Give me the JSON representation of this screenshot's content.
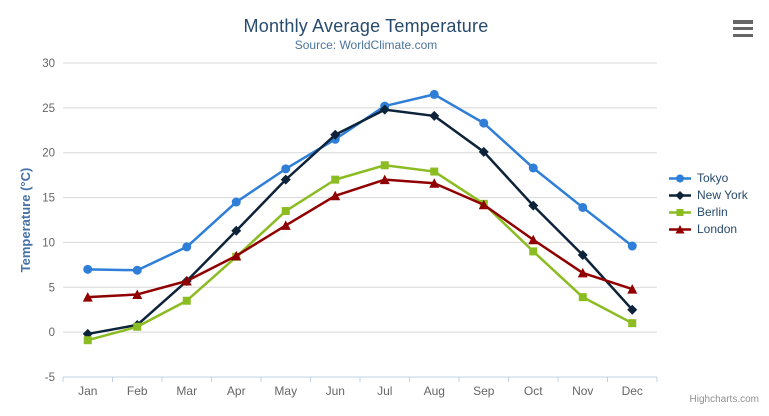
{
  "credits": {
    "label": "Highcharts.com"
  },
  "context_menu": {
    "icon": "hamburger-icon"
  },
  "chart_data": {
    "type": "line",
    "title": "Monthly Average Temperature",
    "subtitle": "Source: WorldClimate.com",
    "categories": [
      "Jan",
      "Feb",
      "Mar",
      "Apr",
      "May",
      "Jun",
      "Jul",
      "Aug",
      "Sep",
      "Oct",
      "Nov",
      "Dec"
    ],
    "series": [
      {
        "name": "Tokyo",
        "color": "#2f7ed8",
        "marker": "circle",
        "values": [
          7.0,
          6.9,
          9.5,
          14.5,
          18.2,
          21.5,
          25.2,
          26.5,
          23.3,
          18.3,
          13.9,
          9.6
        ]
      },
      {
        "name": "New York",
        "color": "#0d233a",
        "marker": "diamond",
        "values": [
          -0.2,
          0.8,
          5.7,
          11.3,
          17.0,
          22.0,
          24.8,
          24.1,
          20.1,
          14.1,
          8.6,
          2.5
        ]
      },
      {
        "name": "Berlin",
        "color": "#8bbc21",
        "marker": "square",
        "values": [
          -0.9,
          0.6,
          3.5,
          8.4,
          13.5,
          17.0,
          18.6,
          17.9,
          14.3,
          9.0,
          3.9,
          1.0
        ]
      },
      {
        "name": "London",
        "color": "#910000",
        "marker": "triangle",
        "values": [
          3.9,
          4.2,
          5.7,
          8.5,
          11.9,
          15.2,
          17.0,
          16.6,
          14.2,
          10.3,
          6.6,
          4.8
        ]
      }
    ],
    "xlabel": "",
    "ylabel": "Temperature (°C)",
    "ylim": [
      -5,
      30
    ],
    "ytick_step": 5,
    "grid": true,
    "legend_position": "right",
    "colors": {
      "grid": "#d8d8d8",
      "axis": "#c0d0e0",
      "tick_label": "#666666",
      "title": "#274b6d",
      "subtitle": "#4d759e",
      "axis_title": "#4572a7",
      "legend_text": "#274b6d",
      "credits": "#909090"
    }
  }
}
